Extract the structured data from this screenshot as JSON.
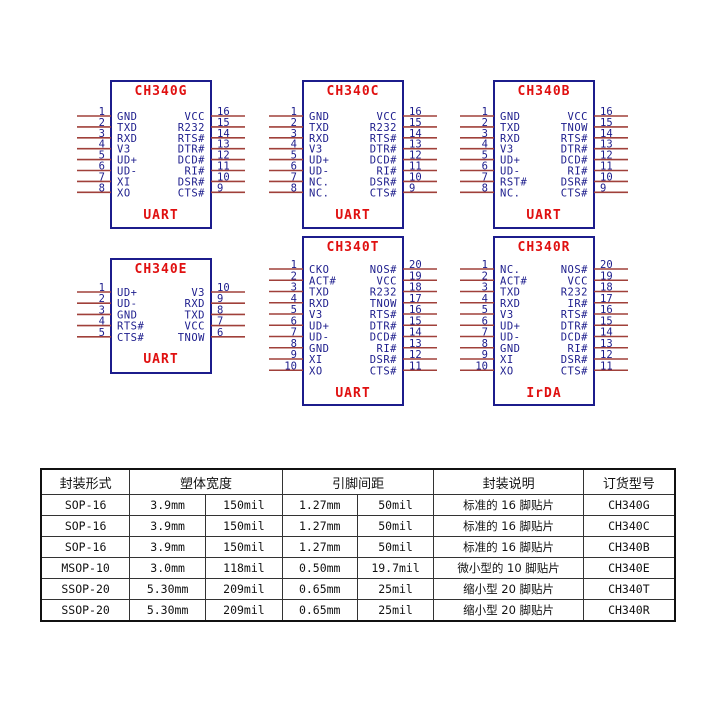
{
  "colors": {
    "box": "#1c1c8c",
    "pin_text": "#1c1c8c",
    "title": "#e01010",
    "pin_line": "#a0403a"
  },
  "chips": [
    {
      "name": "CH340G",
      "mode": "UART",
      "left": [
        "GND",
        "TXD",
        "RXD",
        "V3",
        "UD+",
        "UD-",
        "XI",
        "XO"
      ],
      "right": [
        "VCC",
        "R232",
        "RTS#",
        "DTR#",
        "DCD#",
        "RI#",
        "DSR#",
        "CTS#"
      ]
    },
    {
      "name": "CH340C",
      "mode": "UART",
      "left": [
        "GND",
        "TXD",
        "RXD",
        "V3",
        "UD+",
        "UD-",
        "NC.",
        "NC."
      ],
      "right": [
        "VCC",
        "R232",
        "RTS#",
        "DTR#",
        "DCD#",
        "RI#",
        "DSR#",
        "CTS#"
      ]
    },
    {
      "name": "CH340B",
      "mode": "UART",
      "left": [
        "GND",
        "TXD",
        "RXD",
        "V3",
        "UD+",
        "UD-",
        "RST#",
        "NC."
      ],
      "right": [
        "VCC",
        "TNOW",
        "RTS#",
        "DTR#",
        "DCD#",
        "RI#",
        "DSR#",
        "CTS#"
      ]
    },
    {
      "name": "CH340E",
      "mode": "UART",
      "left": [
        "UD+",
        "UD-",
        "GND",
        "RTS#",
        "CTS#"
      ],
      "right": [
        "V3",
        "RXD",
        "TXD",
        "VCC",
        "TNOW"
      ]
    },
    {
      "name": "CH340T",
      "mode": "UART",
      "left": [
        "CKO",
        "ACT#",
        "TXD",
        "RXD",
        "V3",
        "UD+",
        "UD-",
        "GND",
        "XI",
        "XO"
      ],
      "right": [
        "NOS#",
        "VCC",
        "R232",
        "TNOW",
        "RTS#",
        "DTR#",
        "DCD#",
        "RI#",
        "DSR#",
        "CTS#"
      ]
    },
    {
      "name": "CH340R",
      "mode": "IrDA",
      "left": [
        "NC.",
        "ACT#",
        "TXD",
        "RXD",
        "V3",
        "UD+",
        "UD-",
        "GND",
        "XI",
        "XO"
      ],
      "right": [
        "NOS#",
        "VCC",
        "R232",
        "IR#",
        "RTS#",
        "DTR#",
        "DCD#",
        "RI#",
        "DSR#",
        "CTS#"
      ]
    }
  ],
  "table": {
    "headers": [
      "封装形式",
      "塑体宽度",
      "引脚间距",
      "封装说明",
      "订货型号"
    ],
    "rows": [
      [
        "SOP-16",
        "3.9mm",
        "150mil",
        "1.27mm",
        "50mil",
        "标准的 16 脚贴片",
        "CH340G"
      ],
      [
        "SOP-16",
        "3.9mm",
        "150mil",
        "1.27mm",
        "50mil",
        "标准的 16 脚贴片",
        "CH340C"
      ],
      [
        "SOP-16",
        "3.9mm",
        "150mil",
        "1.27mm",
        "50mil",
        "标准的 16 脚贴片",
        "CH340B"
      ],
      [
        "MSOP-10",
        "3.0mm",
        "118mil",
        "0.50mm",
        "19.7mil",
        "微小型的 10 脚贴片",
        "CH340E"
      ],
      [
        "SSOP-20",
        "5.30mm",
        "209mil",
        "0.65mm",
        "25mil",
        "缩小型 20 脚贴片",
        "CH340T"
      ],
      [
        "SSOP-20",
        "5.30mm",
        "209mil",
        "0.65mm",
        "25mil",
        "缩小型 20 脚贴片",
        "CH340R"
      ]
    ]
  }
}
